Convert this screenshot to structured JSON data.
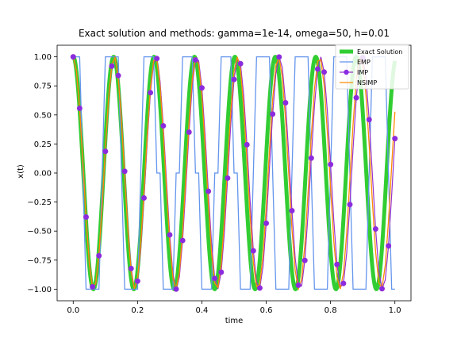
{
  "chart_data": {
    "type": "line",
    "title": "Exact solution and methods: gamma=1e-14, omega=50, h=0.01",
    "xlabel": "time",
    "ylabel": "x(t)",
    "xlim": [
      -0.05,
      1.05
    ],
    "ylim": [
      -1.1,
      1.1
    ],
    "x_ticks": [
      0.0,
      0.2,
      0.4,
      0.6,
      0.8,
      1.0
    ],
    "x_tick_labels": [
      "0.0",
      "0.2",
      "0.4",
      "0.6",
      "0.8",
      "1.0"
    ],
    "y_ticks": [
      -1.0,
      -0.75,
      -0.5,
      -0.25,
      0.0,
      0.25,
      0.5,
      0.75,
      1.0
    ],
    "y_tick_labels": [
      "−1.00",
      "−0.75",
      "−0.50",
      "−0.25",
      "0.00",
      "0.25",
      "0.50",
      "0.75",
      "1.00"
    ],
    "grid": false,
    "legend_position": "top-right",
    "omega": 50,
    "h": 0.01,
    "t_range": [
      0,
      1
    ],
    "series": [
      {
        "name": "Exact Solution",
        "color": "#32cd32",
        "style": "thick-line",
        "formula": "cos(omega*t)"
      },
      {
        "name": "EMP",
        "color": "#6495ed",
        "style": "line"
      },
      {
        "name": "IMP",
        "color": "#8a2be2",
        "style": "line-markers",
        "line_color": "#9932cc"
      },
      {
        "name": "NSIMP",
        "color": "#ff8c00",
        "style": "line"
      }
    ]
  }
}
